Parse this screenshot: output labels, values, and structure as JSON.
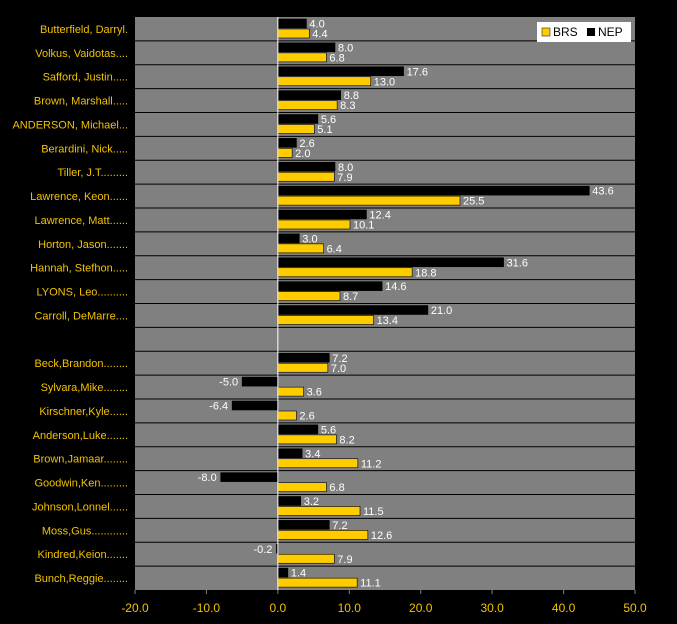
{
  "chart_data": {
    "type": "bar",
    "orientation": "horizontal",
    "categories": [
      "Butterfield, Darryl.",
      "Volkus, Vaidotas....",
      "Safford, Justin.....",
      "Brown, Marshall.....",
      "ANDERSON, Michael...",
      "Berardini, Nick.....",
      "Tiller, J.T.........",
      "Lawrence, Keon......",
      "Lawrence, Matt......",
      "Horton, Jason.......",
      "Hannah, Stefhon.....",
      "LYONS, Leo..........",
      "Carroll, DeMarre....",
      "",
      "Beck,Brandon........",
      "Sylvara,Mike........",
      "Kirschner,Kyle......",
      "Anderson,Luke.......",
      "Brown,Jamaar........",
      "Goodwin,Ken.........",
      "Johnson,Lonnel......",
      "Moss,Gus............",
      "Kindred,Keion.......",
      "Bunch,Reggie........"
    ],
    "series": [
      {
        "name": "NEP",
        "values": [
          4.0,
          8.0,
          17.6,
          8.8,
          5.6,
          2.6,
          8.0,
          43.6,
          12.4,
          3.0,
          31.6,
          14.6,
          21.0,
          null,
          7.2,
          -5.0,
          -6.4,
          5.6,
          3.4,
          -8.0,
          3.2,
          7.2,
          -0.2,
          1.4
        ],
        "labels": [
          "4.0",
          "8.0",
          "17.6",
          "8.8",
          "5.6",
          "2.6",
          "8.0",
          "43.6",
          "12.4",
          "3.0",
          "31.6",
          "14.6",
          "21.0",
          "",
          "7.2",
          "-5.0",
          "-6.4",
          "5.6",
          "3.4",
          "-8.0",
          "3.2",
          "7.2",
          "-0.2",
          "1.4"
        ]
      },
      {
        "name": "BRS",
        "values": [
          4.4,
          6.8,
          13.0,
          8.3,
          5.1,
          2.0,
          7.9,
          25.5,
          10.1,
          6.4,
          18.8,
          8.7,
          13.4,
          null,
          7.0,
          3.6,
          2.6,
          8.2,
          11.2,
          6.8,
          11.5,
          12.6,
          7.9,
          11.1
        ],
        "labels": [
          "4.4",
          "6.8",
          "13.0",
          "8.3",
          "5.1",
          "2.0",
          "7.9",
          "25.5",
          "10.1",
          "6.4",
          "18.8",
          "8.7",
          "13.4",
          "",
          "7.0",
          "3.6",
          "2.6",
          "8.2",
          "11.2",
          "6.8",
          "11.5",
          "12.6",
          "7.9",
          "11.1"
        ]
      }
    ],
    "legend": [
      "BRS",
      "NEP"
    ],
    "xlim": [
      -20,
      50
    ],
    "xticks": [
      "-20.0",
      "-10.0",
      "0.0",
      "10.0",
      "20.0",
      "30.0",
      "40.0",
      "50.0"
    ],
    "grid": "horizontal band separators",
    "legend_position": "top-right",
    "colors": {
      "NEP": "#000000",
      "BRS": "#FFCC00",
      "plot_bg": "#808080",
      "page_bg": "#000000",
      "category_text": "#F2C200",
      "value_text": "#FFFFFF"
    }
  }
}
